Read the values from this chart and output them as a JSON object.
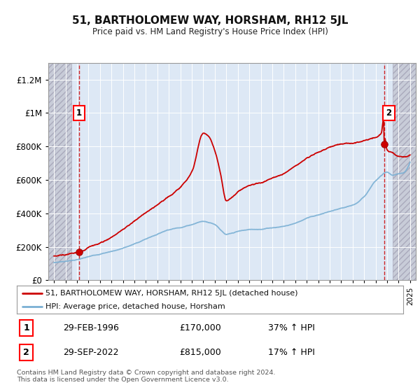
{
  "title": "51, BARTHOLOMEW WAY, HORSHAM, RH12 5JL",
  "subtitle": "Price paid vs. HM Land Registry's House Price Index (HPI)",
  "xlim_left": 1993.5,
  "xlim_right": 2025.5,
  "ylim_bottom": 0,
  "ylim_top": 1300000,
  "yticks": [
    0,
    200000,
    400000,
    600000,
    800000,
    1000000,
    1200000
  ],
  "ytick_labels": [
    "£0",
    "£200K",
    "£400K",
    "£600K",
    "£800K",
    "£1M",
    "£1.2M"
  ],
  "xticks": [
    1994,
    1995,
    1996,
    1997,
    1998,
    1999,
    2000,
    2001,
    2002,
    2003,
    2004,
    2005,
    2006,
    2007,
    2008,
    2009,
    2010,
    2011,
    2012,
    2013,
    2014,
    2015,
    2016,
    2017,
    2018,
    2019,
    2020,
    2021,
    2022,
    2023,
    2024,
    2025
  ],
  "hatch_left_end": 1995.5,
  "hatch_right_start": 2023.5,
  "sale1_year": 1996.167,
  "sale1_price": 170000,
  "sale2_year": 2022.75,
  "sale2_price": 815000,
  "sale1_label": "1",
  "sale2_label": "2",
  "property_color": "#cc0000",
  "hpi_color": "#7ab0d4",
  "legend_property": "51, BARTHOLOMEW WAY, HORSHAM, RH12 5JL (detached house)",
  "legend_hpi": "HPI: Average price, detached house, Horsham",
  "annotation1_date": "29-FEB-1996",
  "annotation1_price": "£170,000",
  "annotation1_change": "37% ↑ HPI",
  "annotation2_date": "29-SEP-2022",
  "annotation2_price": "£815,000",
  "annotation2_change": "17% ↑ HPI",
  "footer": "Contains HM Land Registry data © Crown copyright and database right 2024.\nThis data is licensed under the Open Government Licence v3.0.",
  "bg_color": "#dde8f5",
  "grid_color": "#ffffff"
}
